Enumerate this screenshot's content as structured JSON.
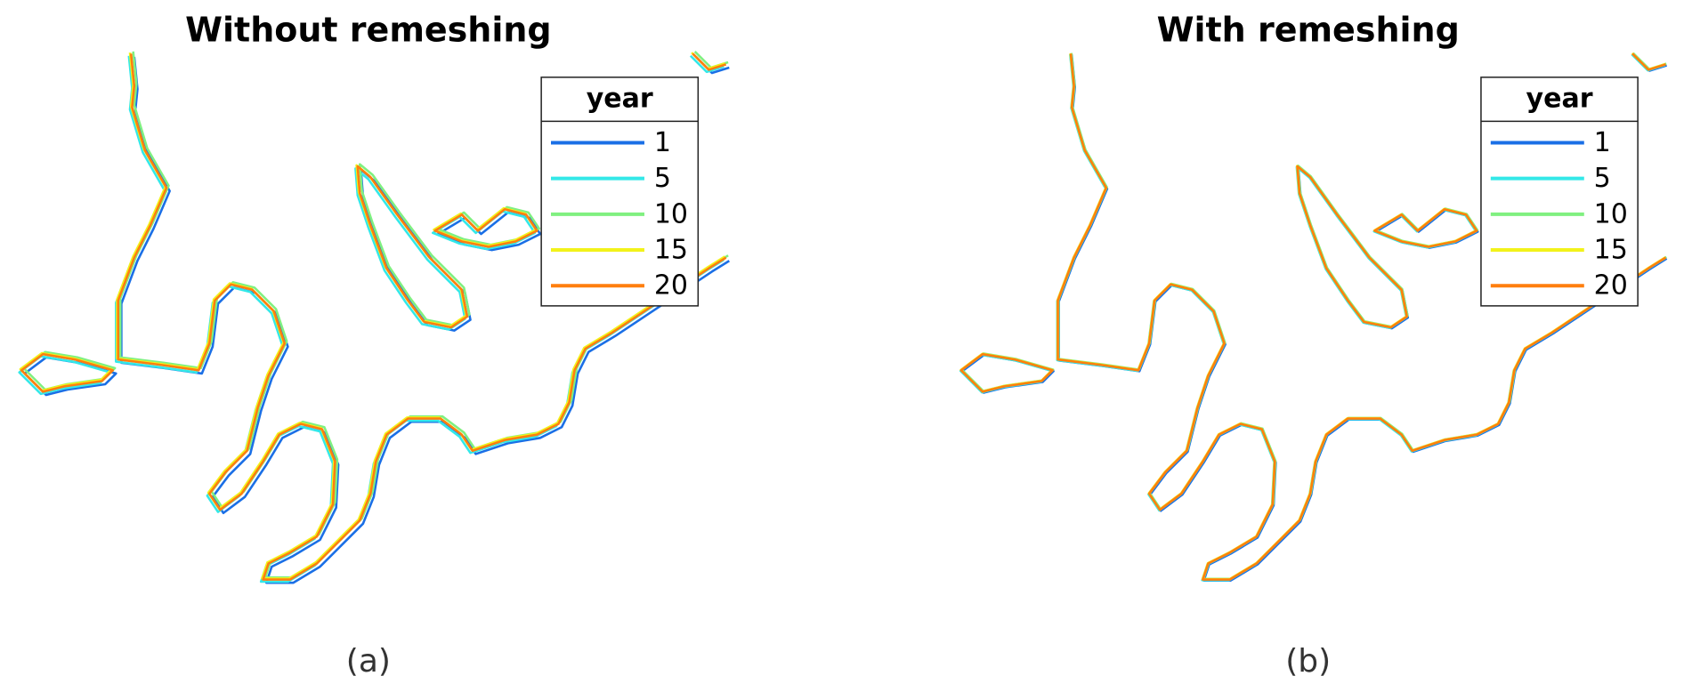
{
  "panels": [
    {
      "title": "Without remeshing",
      "caption": "(a)",
      "legend": {
        "title": "year",
        "entries": [
          {
            "label": "1",
            "color": "#1a6fe6"
          },
          {
            "label": "5",
            "color": "#33e8e8"
          },
          {
            "label": "10",
            "color": "#80f080"
          },
          {
            "label": "15",
            "color": "#f2f21a"
          },
          {
            "label": "20",
            "color": "#ff7f0e"
          }
        ]
      }
    },
    {
      "title": "With remeshing",
      "caption": "(b)",
      "legend": {
        "title": "year",
        "entries": [
          {
            "label": "1",
            "color": "#1a6fe6"
          },
          {
            "label": "5",
            "color": "#33e8e8"
          },
          {
            "label": "10",
            "color": "#80f080"
          },
          {
            "label": "15",
            "color": "#f2f21a"
          },
          {
            "label": "20",
            "color": "#ff7f0e"
          }
        ]
      }
    }
  ]
}
